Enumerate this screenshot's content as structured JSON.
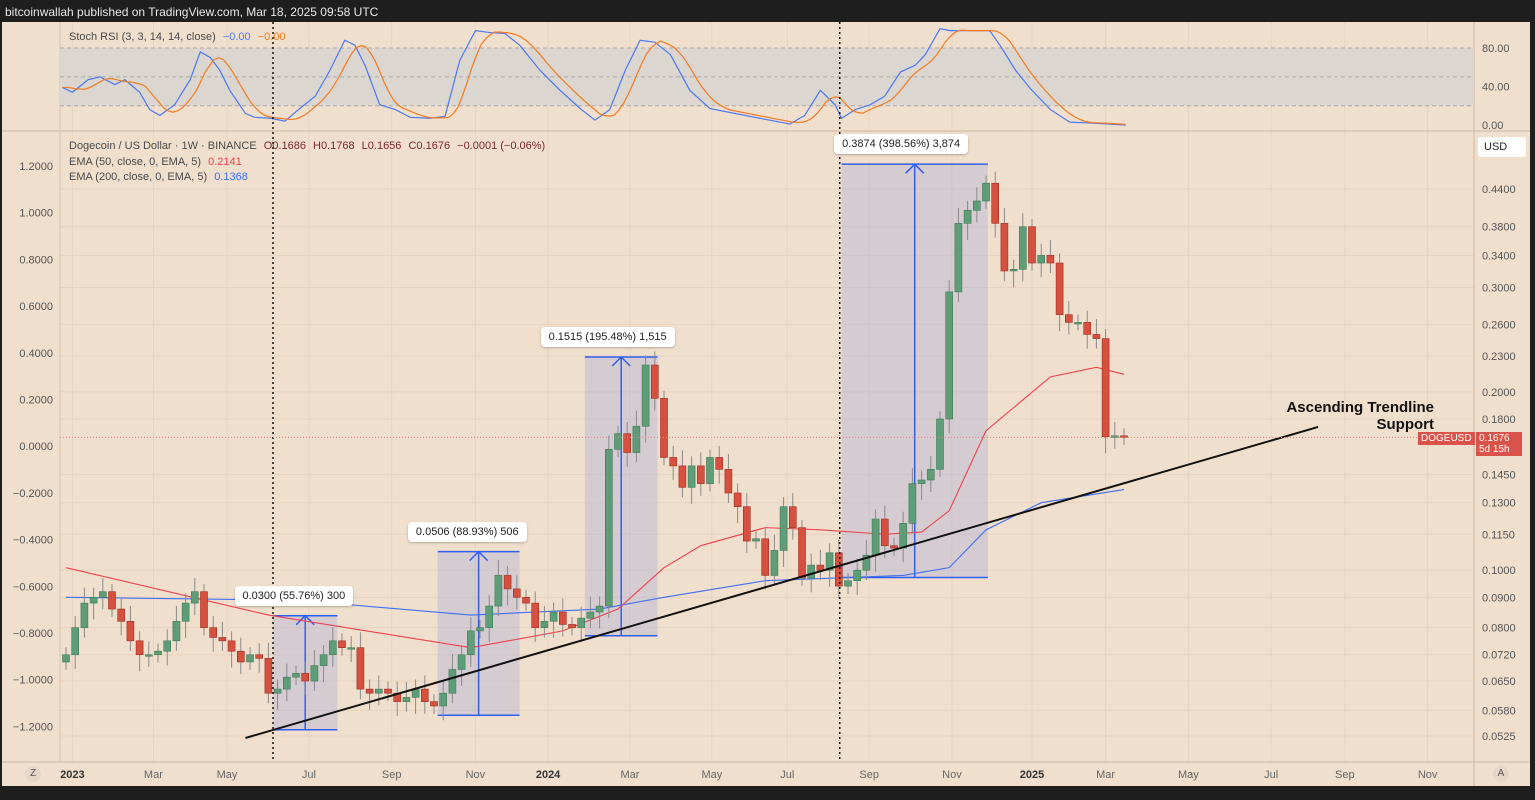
{
  "header": {
    "publisher": "bitcoinwallah published on TradingView.com, Mar 18, 2025 09:58 UTC"
  },
  "colors": {
    "bg": "#f1dfcd",
    "up": "#5f9d78",
    "down": "#d65040",
    "ema50": "#f0404d",
    "ema200": "#3d6ff5",
    "stoch_k": "#4a79f5",
    "stoch_d": "#f57b20",
    "measure": "#2f5ff0"
  },
  "stoch": {
    "title": "Stoch RSI (3, 3, 14, 14, close)",
    "k_value": "−0.00",
    "d_value": "−0.00",
    "axis": [
      "80.00",
      "40.00",
      "0.00"
    ],
    "band": [
      20,
      80
    ],
    "k": [
      [
        -0.4,
        39
      ],
      [
        0.7,
        34
      ],
      [
        2.4,
        47
      ],
      [
        3.7,
        50
      ],
      [
        5.3,
        42
      ],
      [
        6.4,
        47
      ],
      [
        8.0,
        34
      ],
      [
        9.1,
        16
      ],
      [
        10.2,
        10
      ],
      [
        11.8,
        21
      ],
      [
        13.5,
        47
      ],
      [
        14.6,
        76
      ],
      [
        15.7,
        70
      ],
      [
        16.7,
        57
      ],
      [
        17.8,
        36
      ],
      [
        19.5,
        12
      ],
      [
        20.5,
        8
      ],
      [
        22.2,
        7
      ],
      [
        23.8,
        4
      ],
      [
        25.4,
        17
      ],
      [
        27.1,
        30
      ],
      [
        28.7,
        57
      ],
      [
        30.3,
        88
      ],
      [
        31.4,
        83
      ],
      [
        32.5,
        62
      ],
      [
        34.1,
        21
      ],
      [
        35.8,
        16
      ],
      [
        37.4,
        8
      ],
      [
        39.6,
        7
      ],
      [
        41.2,
        9
      ],
      [
        42.8,
        67
      ],
      [
        44.5,
        98
      ],
      [
        46.1,
        96
      ],
      [
        47.7,
        95
      ],
      [
        49.3,
        83
      ],
      [
        51.5,
        57
      ],
      [
        53.7,
        36
      ],
      [
        55.9,
        17
      ],
      [
        57.5,
        5
      ],
      [
        59.1,
        16
      ],
      [
        60.8,
        57
      ],
      [
        62.4,
        88
      ],
      [
        64.0,
        86
      ],
      [
        65.7,
        73
      ],
      [
        67.8,
        36
      ],
      [
        70.0,
        17
      ],
      [
        72.2,
        13
      ],
      [
        74.3,
        9
      ],
      [
        76.5,
        5
      ],
      [
        78.7,
        1
      ],
      [
        80.3,
        10
      ],
      [
        82.0,
        36
      ],
      [
        83.6,
        21
      ],
      [
        84.3,
        7
      ],
      [
        85.8,
        16
      ],
      [
        87.4,
        21
      ],
      [
        89.0,
        30
      ],
      [
        90.7,
        55
      ],
      [
        92.3,
        62
      ],
      [
        93.4,
        73
      ],
      [
        95.0,
        100
      ],
      [
        96.1,
        98
      ],
      [
        97.2,
        98
      ],
      [
        100.4,
        98
      ],
      [
        101.5,
        83
      ],
      [
        103.2,
        57
      ],
      [
        104.8,
        38
      ],
      [
        107.0,
        16
      ],
      [
        109.1,
        3
      ],
      [
        111.3,
        2
      ],
      [
        115.2,
        0
      ]
    ]
  },
  "legend": {
    "symbol": "Dogecoin / US Dollar · 1W · BINANCE",
    "open": "O0.1686",
    "high": "H0.1768",
    "low": "L0.1656",
    "close": "C0.1676",
    "change": "−0.0001 (−0.06%)",
    "ema50_label": "EMA (50, close, 0, EMA, 5)",
    "ema50_value": "0.2141",
    "ema200_label": "EMA (200, close, 0, EMA, 5)",
    "ema200_value": "0.1368"
  },
  "price_axis": {
    "currency": "USD",
    "ticks": [
      "0.4400",
      "0.3800",
      "0.3400",
      "0.3000",
      "0.2600",
      "0.2300",
      "0.2000",
      "0.1800",
      "0.1450",
      "0.1300",
      "0.1150",
      "0.1000",
      "0.0900",
      "0.0800",
      "0.0720",
      "0.0650",
      "0.0580",
      "0.0525"
    ],
    "last_symbol": "DOGEUSD",
    "last_price": "0.1676",
    "countdown": "5d 15h",
    "last_value": 0.1676
  },
  "left_axis": {
    "ticks": [
      "1.2000",
      "1.0000",
      "0.8000",
      "0.6000",
      "0.4000",
      "0.2000",
      "0.0000",
      "−0.2000",
      "−0.4000",
      "−0.6000",
      "−0.8000",
      "−1.0000",
      "−1.2000"
    ]
  },
  "time_axis": {
    "labels": [
      [
        "2023",
        0.7,
        true
      ],
      [
        "Mar",
        9.5,
        false
      ],
      [
        "May",
        17.5,
        false
      ],
      [
        "Jul",
        26.4,
        false
      ],
      [
        "Sep",
        35.4,
        false
      ],
      [
        "Nov",
        44.5,
        false
      ],
      [
        "2024",
        52.4,
        true
      ],
      [
        "Mar",
        61.3,
        false
      ],
      [
        "May",
        70.2,
        false
      ],
      [
        "Jul",
        78.4,
        false
      ],
      [
        "Sep",
        87.3,
        false
      ],
      [
        "Nov",
        96.3,
        false
      ],
      [
        "2025",
        105,
        true
      ],
      [
        "Mar",
        113,
        false
      ],
      [
        "May",
        122,
        false
      ],
      [
        "Jul",
        131,
        false
      ],
      [
        "Sep",
        139,
        false
      ],
      [
        "Nov",
        148,
        false
      ]
    ],
    "left_button": "Z",
    "right_button": "A"
  },
  "candles": {
    "start_open": 0.07,
    "closes": [
      0.072,
      0.08,
      0.088,
      0.09,
      0.092,
      0.086,
      0.082,
      0.076,
      0.072,
      0.072,
      0.073,
      0.076,
      0.082,
      0.088,
      0.092,
      0.08,
      0.077,
      0.076,
      0.073,
      0.07,
      0.072,
      0.071,
      0.062,
      0.063,
      0.066,
      0.067,
      0.065,
      0.069,
      0.072,
      0.076,
      0.074,
      0.074,
      0.063,
      0.062,
      0.063,
      0.062,
      0.06,
      0.061,
      0.063,
      0.06,
      0.059,
      0.062,
      0.068,
      0.072,
      0.079,
      0.08,
      0.087,
      0.098,
      0.093,
      0.09,
      0.088,
      0.08,
      0.082,
      0.085,
      0.081,
      0.08,
      0.083,
      0.085,
      0.087,
      0.16,
      0.17,
      0.158,
      0.175,
      0.222,
      0.195,
      0.155,
      0.15,
      0.138,
      0.15,
      0.14,
      0.155,
      0.148,
      0.135,
      0.128,
      0.112,
      0.113,
      0.098,
      0.108,
      0.128,
      0.118,
      0.097,
      0.102,
      0.1,
      0.107,
      0.094,
      0.096,
      0.1,
      0.106,
      0.122,
      0.11,
      0.109,
      0.12,
      0.14,
      0.142,
      0.148,
      0.18,
      0.295,
      0.385,
      0.405,
      0.42,
      0.45,
      0.385,
      0.32,
      0.322,
      0.38,
      0.33,
      0.34,
      0.33,
      0.27,
      0.262,
      0.262,
      0.25,
      0.246,
      0.168,
      0.1686,
      0.1676
    ]
  },
  "ema50": [
    [
      0,
      0.101
    ],
    [
      22,
      0.084
    ],
    [
      44,
      0.074
    ],
    [
      54,
      0.079
    ],
    [
      60,
      0.086
    ],
    [
      65,
      0.101
    ],
    [
      69,
      0.11
    ],
    [
      76,
      0.118
    ],
    [
      82,
      0.117
    ],
    [
      89,
      0.115
    ],
    [
      93,
      0.116
    ],
    [
      96,
      0.126
    ],
    [
      100,
      0.172
    ],
    [
      107,
      0.212
    ],
    [
      112,
      0.22
    ],
    [
      115,
      0.2141
    ]
  ],
  "ema200": [
    [
      0,
      0.09
    ],
    [
      25,
      0.089
    ],
    [
      44,
      0.084
    ],
    [
      58,
      0.086
    ],
    [
      65,
      0.09
    ],
    [
      76,
      0.096
    ],
    [
      91,
      0.098
    ],
    [
      96,
      0.101
    ],
    [
      100,
      0.117
    ],
    [
      106,
      0.13
    ],
    [
      115,
      0.1368
    ]
  ],
  "measurements": [
    {
      "label": "0.0300 (55.76%) 300",
      "from_week": 22.5,
      "to_week": 29.5,
      "low": 0.0538,
      "high": 0.0838
    },
    {
      "label": "0.0506 (88.93%) 506",
      "from_week": 40.4,
      "to_week": 49.3,
      "low": 0.0569,
      "high": 0.1075
    },
    {
      "label": "0.1515 (195.48%) 1,515",
      "from_week": 56.4,
      "to_week": 64.3,
      "low": 0.0775,
      "high": 0.229
    },
    {
      "label": "0.3874 (398.56%) 3,874",
      "from_week": 84.3,
      "to_week": 100.2,
      "low": 0.0972,
      "high": 0.4846
    }
  ],
  "trendline": {
    "from": [
      19.5,
      0.0521
    ],
    "to": [
      136.1,
      0.1745
    ],
    "label_line1": "Ascending Trendline",
    "label_line2": "Support"
  },
  "vertical_markers": [
    22.5,
    84.1
  ]
}
